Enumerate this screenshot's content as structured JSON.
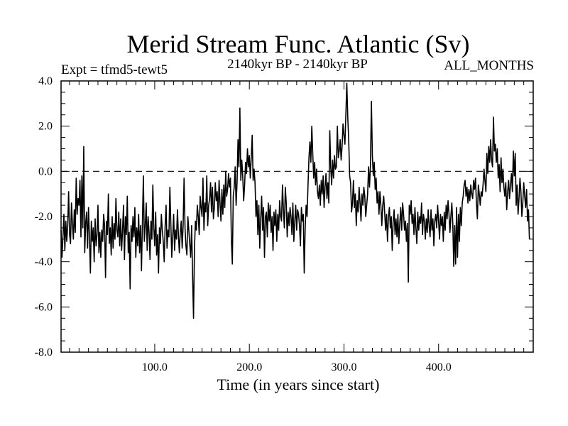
{
  "chart_data": {
    "type": "line",
    "title": "Merid Stream Func. Atlantic (Sv)",
    "subtitle_left": "Expt = tfmd5-tewt5",
    "subtitle_center": "2140kyr BP - 2140kyr BP",
    "subtitle_right": "ALL_MONTHS",
    "xlabel": "Time (in years since start)",
    "ylabel": "",
    "xlim": [
      1,
      500
    ],
    "ylim": [
      -8,
      4
    ],
    "x_ticks": [
      100,
      200,
      300,
      400
    ],
    "x_tick_labels": [
      "100.0",
      "200.0",
      "300.0",
      "400.0"
    ],
    "y_ticks": [
      4,
      2,
      0,
      -2,
      -4,
      -6,
      -8
    ],
    "y_tick_labels": [
      "4.0",
      "2.0",
      "0.0",
      "-2.0",
      "-4.0",
      "-6.0",
      "-8.0"
    ],
    "reference_line": 0,
    "grid": false,
    "series": [
      {
        "name": "Merid Stream Func. Atlantic",
        "x_start": 1,
        "x_step": 1,
        "values": [
          -2.6,
          -3.8,
          -2.9,
          -1.9,
          -3.5,
          -2.2,
          -3.1,
          -2.4,
          -0.9,
          -2.8,
          -3.2,
          -1.4,
          -2.3,
          -3.0,
          -1.7,
          -2.7,
          -0.3,
          -1.9,
          -1.2,
          -1.5,
          -0.4,
          -2.9,
          -0.2,
          -2.5,
          1.1,
          -3.6,
          -2.3,
          -1.8,
          -3.4,
          -1.6,
          -2.9,
          -4.5,
          -2.2,
          -3.1,
          -2.5,
          -4.0,
          -2.1,
          -3.3,
          -2.8,
          -1.5,
          -3.6,
          -2.7,
          -3.8,
          -2.6,
          -3.1,
          -1.9,
          -2.4,
          -4.7,
          -2.2,
          -2.8,
          -1.0,
          -3.2,
          -2.5,
          -3.7,
          -2.0,
          -3.4,
          -2.3,
          -3.0,
          -1.2,
          -2.6,
          -2.9,
          -1.8,
          -3.3,
          -2.1,
          -3.5,
          -2.6,
          -1.5,
          -3.9,
          -2.0,
          -2.8,
          -1.1,
          -3.6,
          -2.7,
          -5.2,
          -2.4,
          -3.1,
          -2.0,
          -2.9,
          -1.6,
          -3.8,
          -2.5,
          -3.3,
          -1.9,
          -3.6,
          -2.4,
          -4.4,
          -2.2,
          -0.2,
          -3.1,
          -2.4,
          -1.4,
          -3.5,
          -2.0,
          -2.7,
          -3.9,
          -2.2,
          -3.0,
          -0.6,
          -2.5,
          -3.3,
          -1.8,
          -3.7,
          -2.8,
          -4.5,
          -2.5,
          -3.2,
          -1.9,
          -2.6,
          -3.1,
          -4.0,
          -2.4,
          -1.5,
          -3.4,
          -2.6,
          -2.9,
          -0.7,
          -2.3,
          -3.8,
          -2.9,
          -1.9,
          -3.5,
          -2.6,
          -3.0,
          -1.7,
          -2.8,
          -3.6,
          -2.7,
          -2.2,
          -3.4,
          -2.4,
          -0.3,
          -2.5,
          -3.3,
          -3.7,
          -2.0,
          -2.6,
          -3.2,
          -3.8,
          -2.4,
          -4.6,
          -6.5,
          -3.4,
          -2.2,
          -2.6,
          -1.5,
          -2.0,
          -2.8,
          -1.1,
          -1.6,
          -2.0,
          -0.3,
          -2.6,
          -1.4,
          -1.8,
          -0.2,
          -2.4,
          -1.5,
          -1.2,
          -0.5,
          -1.8,
          -0.7,
          -2.1,
          -1.6,
          -0.5,
          -1.3,
          -0.9,
          -2.0,
          -0.4,
          -1.4,
          -2.2,
          -0.8,
          -1.9,
          -0.6,
          -1.6,
          0.0,
          -1.1,
          -0.8,
          -0.1,
          -0.7,
          -0.3,
          -3.0,
          -4.1,
          -1.1,
          -0.7,
          0.2,
          -1.5,
          -0.5,
          1.4,
          0.2,
          2.8,
          -0.4,
          0.5,
          -0.2,
          -1.3,
          -0.6,
          0.4,
          -0.1,
          1.0,
          0.2,
          0.7,
          -0.3,
          0.6,
          1.6,
          -0.4,
          0.1,
          -0.5,
          -2.0,
          -1.3,
          -2.8,
          -1.5,
          -3.4,
          -2.1,
          -1.1,
          -2.6,
          -1.6,
          -3.8,
          -2.0,
          -1.8,
          -2.9,
          -1.4,
          -2.2,
          -1.5,
          -2.7,
          -2.0,
          -3.5,
          -1.8,
          -2.4,
          -1.7,
          -3.1,
          -1.9,
          -2.6,
          -1.3,
          -2.0,
          -2.2,
          -0.6,
          -1.7,
          -2.5,
          -0.7,
          -1.4,
          -2.9,
          -1.8,
          -2.4,
          -1.6,
          -2.0,
          -2.8,
          -1.4,
          -3.1,
          -2.2,
          -1.5,
          -2.6,
          -1.7,
          -1.9,
          -2.4,
          -3.3,
          -1.6,
          -2.2,
          -1.9,
          -4.5,
          -2.5,
          -1.5,
          -2.0,
          -0.6,
          0.6,
          1.3,
          0.4,
          2.0,
          0.8,
          -0.3,
          0.4,
          -0.6,
          0.1,
          -0.9,
          -1.2,
          -0.6,
          -1.5,
          -0.4,
          -1.0,
          -0.2,
          -1.6,
          -0.7,
          -0.1,
          -1.2,
          -0.5,
          -1.4,
          1.8,
          0.2,
          -0.6,
          0.5,
          -0.3,
          0.7,
          0.1,
          0.2,
          2.0,
          0.6,
          0.9,
          1.4,
          0.5,
          1.1,
          2.1,
          1.6,
          1.2,
          2.5,
          3.9,
          2.4,
          1.4,
          -0.2,
          -0.5,
          -1.8,
          -1.4,
          -0.4,
          -1.6,
          -1.0,
          -2.4,
          -1.3,
          -1.8,
          -0.7,
          -1.4,
          -2.2,
          -1.0,
          -1.5,
          -0.7,
          -1.1,
          -2.0,
          -1.5,
          -1.0,
          0.2,
          -0.7,
          0.3,
          3.1,
          0.7,
          -0.2,
          0.4,
          -0.8,
          -0.3,
          -1.4,
          -0.9,
          -1.9,
          -0.9,
          -1.5,
          -2.4,
          -1.5,
          -1.1,
          -1.8,
          -2.6,
          -1.9,
          -3.1,
          -2.0,
          -1.6,
          -2.5,
          -2.0,
          -3.5,
          -2.2,
          -1.7,
          -2.8,
          -2.1,
          -2.9,
          -1.9,
          -3.2,
          -2.3,
          -1.6,
          -2.6,
          -1.4,
          -1.9,
          -2.6,
          -2.2,
          -3.1,
          -2.3,
          -4.9,
          -1.5,
          -1.9,
          -1.3,
          -2.3,
          -1.9,
          -2.8,
          -1.6,
          -2.5,
          -3.2,
          -1.8,
          -2.6,
          -2.0,
          -2.3,
          -1.4,
          -2.8,
          -1.9,
          -2.2,
          -3.0,
          -2.1,
          -2.7,
          -1.7,
          -2.4,
          -2.9,
          -1.7,
          -2.6,
          -2.1,
          -3.3,
          -2.2,
          -1.9,
          -2.5,
          -1.5,
          -2.2,
          -3.0,
          -1.9,
          -2.4,
          -2.0,
          -3.1,
          -1.8,
          -2.6,
          -1.5,
          -2.1,
          -1.3,
          -1.9,
          -2.7,
          -2.0,
          -1.4,
          -2.3,
          -4.2,
          -2.4,
          -4.1,
          -1.6,
          -3.8,
          -1.9,
          -3.1,
          -1.6,
          -2.4,
          -1.4,
          -1.1,
          -0.6,
          -0.4,
          -1.1,
          -0.7,
          -1.4,
          -0.8,
          -1.3,
          -0.6,
          -1.0,
          -1.2,
          -0.4,
          -0.8,
          -0.3,
          -1.4,
          -2.1,
          -0.6,
          -1.0,
          -1.5,
          -0.9,
          -1.1,
          -0.6,
          0.1,
          -0.4,
          -0.9,
          0.8,
          -0.1,
          1.1,
          0.4,
          1.4,
          0.5,
          0.2,
          2.4,
          0.9,
          1.2,
          0.4,
          1.0,
          -0.3,
          0.3,
          -0.9,
          0.6,
          -0.5,
          0.1,
          -0.7,
          -1.1,
          -0.5,
          -1.7,
          -0.9,
          -0.4,
          -1.2,
          -0.6,
          -0.1,
          -0.9,
          0.9,
          -0.2,
          0.8,
          -1.5,
          -0.6,
          -1.9,
          -1.2,
          -0.3,
          -0.9,
          -2.0,
          -1.4,
          -0.5,
          -1.1,
          -1.6,
          -0.8,
          -2.2,
          -1.7,
          -3.0
        ]
      }
    ]
  }
}
